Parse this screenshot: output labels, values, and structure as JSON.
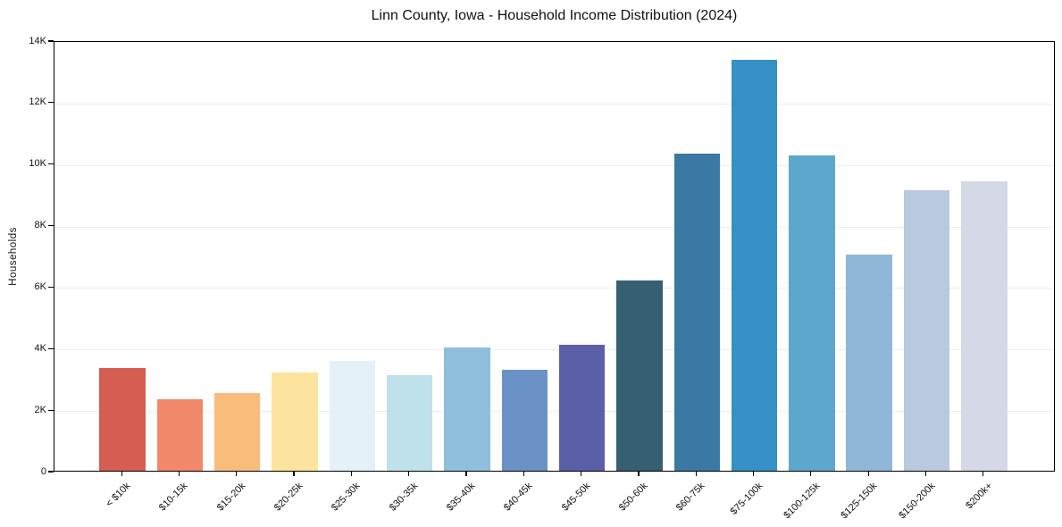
{
  "chart_data": {
    "type": "bar",
    "title": "Linn County, Iowa - Household Income Distribution (2024)",
    "xlabel": "",
    "ylabel": "Households",
    "categories": [
      "< $10k",
      "$10-15k",
      "$15-20k",
      "$20-25k",
      "$25-30k",
      "$30-35k",
      "$35-40k",
      "$40-45k",
      "$45-50k",
      "$50-60k",
      "$60-75k",
      "$75-100k",
      "$100-125k",
      "$125-150k",
      "$150-200k",
      "$200k+"
    ],
    "values": [
      3330,
      2310,
      2530,
      3200,
      3580,
      3120,
      4020,
      3290,
      4110,
      6200,
      10300,
      13350,
      10260,
      7040,
      9110,
      9400
    ],
    "bar_colors": [
      "#d65d52",
      "#f1886a",
      "#fabc7d",
      "#fce49e",
      "#e4f2f7",
      "#bee1eb",
      "#90bedd",
      "#6b92c7",
      "#5a5fa8",
      "#375f74",
      "#3a7aa2",
      "#3590c5",
      "#5ca8cd",
      "#90b7d8",
      "#b8c9e0",
      "#d5d8e6"
    ],
    "ylim": [
      0,
      14000
    ],
    "ytick_interval": 2000,
    "ytick_labels": [
      "0",
      "2K",
      "4K",
      "6K",
      "8K",
      "10K",
      "12K",
      "14K"
    ],
    "grid": true,
    "legend_position": "none"
  },
  "colors": {
    "background": "#ffffff",
    "grid": "#ececec",
    "spine": "#000000",
    "text": "#111111"
  }
}
